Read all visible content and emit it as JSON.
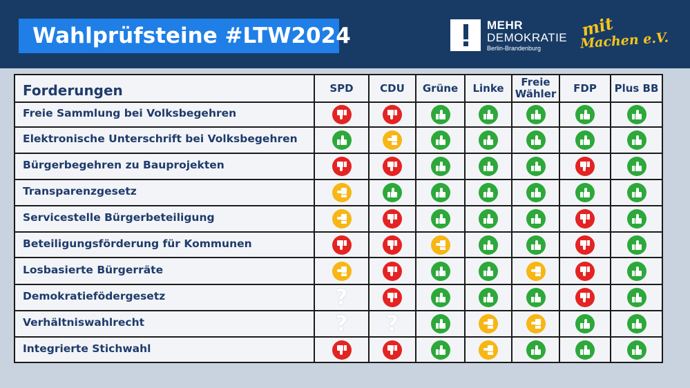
{
  "title": "Wahlprüfsteine #LTW2024",
  "logos": {
    "mehr_demokratie": {
      "line1": "MEHR",
      "line2": "DEMOKRATIE",
      "line3": "Berlin-Brandenburg"
    },
    "mitmachen": {
      "top": "mit",
      "bottom": "Machen e.V."
    }
  },
  "table": {
    "header": "Forderungen",
    "parties": [
      "SPD",
      "CDU",
      "Grüne",
      "Linke",
      "Freie Wähler",
      "FDP",
      "Plus BB"
    ],
    "rows": [
      {
        "label": "Freie Sammlung bei Volksbegehren",
        "ratings": [
          "no",
          "no",
          "yes",
          "yes",
          "yes",
          "yes",
          "yes"
        ]
      },
      {
        "label": "Elektronische Unterschrift bei Volksbegehren",
        "ratings": [
          "yes",
          "partial",
          "yes",
          "yes",
          "yes",
          "yes",
          "yes"
        ]
      },
      {
        "label": "Bürgerbegehren zu Bauprojekten",
        "ratings": [
          "no",
          "no",
          "yes",
          "yes",
          "yes",
          "no",
          "yes"
        ]
      },
      {
        "label": "Transparenzgesetz",
        "ratings": [
          "partial",
          "yes",
          "yes",
          "yes",
          "yes",
          "yes",
          "yes"
        ]
      },
      {
        "label": "Servicestelle Bürgerbeteiligung",
        "ratings": [
          "partial",
          "no",
          "yes",
          "yes",
          "yes",
          "no",
          "yes"
        ]
      },
      {
        "label": "Beteiligungsförderung für Kommunen",
        "ratings": [
          "no",
          "no",
          "partial",
          "yes",
          "yes",
          "no",
          "yes"
        ]
      },
      {
        "label": "Losbasierte Bürgerräte",
        "ratings": [
          "partial",
          "no",
          "yes",
          "yes",
          "partial",
          "no",
          "yes"
        ]
      },
      {
        "label": "Demokratiefödergesetz",
        "ratings": [
          "unknown",
          "no",
          "yes",
          "yes",
          "yes",
          "no",
          "yes"
        ]
      },
      {
        "label": "Verhältniswahlrecht",
        "ratings": [
          "unknown",
          "unknown",
          "yes",
          "partial",
          "partial",
          "yes",
          "yes"
        ]
      },
      {
        "label": "Integrierte Stichwahl",
        "ratings": [
          "no",
          "no",
          "yes",
          "partial",
          "yes",
          "yes",
          "yes"
        ]
      }
    ]
  },
  "rating_icons": {
    "yes": "thumbs-up-icon",
    "no": "thumbs-down-icon",
    "partial": "thumb-sideways-icon",
    "unknown": "question-mark-icon"
  },
  "question_glyph": "?",
  "colors": {
    "yes": "#2da83a",
    "no": "#e42323",
    "partial": "#f7b614",
    "header_bg": "#183b66",
    "title_bg": "#1f7fe6",
    "text": "#1f3b6b"
  }
}
